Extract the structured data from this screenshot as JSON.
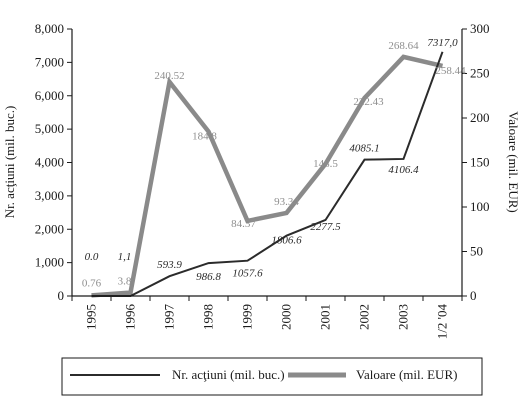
{
  "chart_data": {
    "type": "line",
    "categories": [
      "1995",
      "1996",
      "1997",
      "1998",
      "1999",
      "2000",
      "2001",
      "2002",
      "2003",
      "1/2 '04"
    ],
    "title": "",
    "ylabel_left": "Nr. acţiuni (mil. buc.)",
    "ylabel_right": "Valoare (mil. EUR)",
    "ylim_left": [
      0,
      8000
    ],
    "ylim_right": [
      0,
      300
    ],
    "yticks_left": [
      "0",
      "1,000",
      "2,000",
      "3,000",
      "4,000",
      "5,000",
      "6,000",
      "7,000",
      "8,000"
    ],
    "yticks_right": [
      "0",
      "50",
      "100",
      "150",
      "200",
      "250",
      "300"
    ],
    "grid": false,
    "legend_position": "bottom",
    "series": [
      {
        "name": "Nr. acţiuni (mil. buc.)",
        "axis": "left",
        "color": "#2b2b2b",
        "values": [
          0.0,
          1.1,
          593.9,
          986.8,
          1057.6,
          1806.6,
          2277.5,
          4085.1,
          4106.4,
          7317.0
        ],
        "labels": [
          "0.0",
          "1,1",
          "593.9",
          "986.8",
          "1057.6",
          "1806.6",
          "2277.5",
          "4085.1",
          "4106.4",
          "7317,0"
        ]
      },
      {
        "name": "Valoare (mil. EUR)",
        "axis": "right",
        "color": "#8a8a8a",
        "values": [
          0.76,
          3.8,
          240.52,
          184.8,
          84.37,
          93.34,
          148.5,
          222.43,
          268.64,
          258.44
        ],
        "labels": [
          "0.76",
          "3.8",
          "240.52",
          "184.8",
          "84.37",
          "93.34",
          "148.5",
          "222.43",
          "268.64",
          "258.44"
        ]
      }
    ]
  }
}
